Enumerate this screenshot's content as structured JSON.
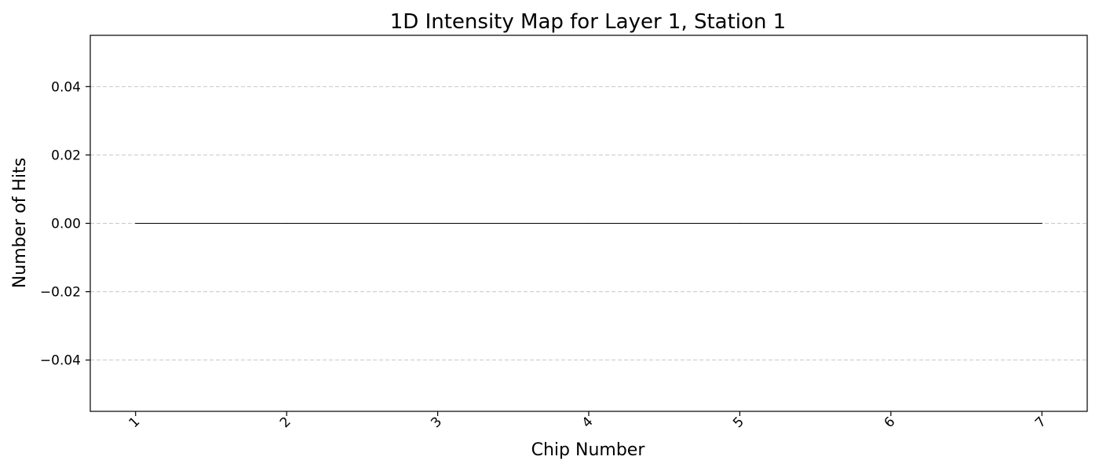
{
  "chart_data": {
    "type": "bar",
    "title": "1D Intensity Map for Layer 1, Station 1",
    "xlabel": "Chip Number",
    "ylabel": "Number of Hits",
    "categories": [
      "1",
      "2",
      "3",
      "4",
      "5",
      "6",
      "7"
    ],
    "x": [
      1,
      2,
      3,
      4,
      5,
      6,
      7
    ],
    "values": [
      0,
      0,
      0,
      0,
      0,
      0,
      0
    ],
    "xlim": [
      0.7,
      7.3
    ],
    "ylim": [
      -0.055,
      0.055
    ],
    "yticks": [
      -0.04,
      -0.02,
      0.0,
      0.02,
      0.04
    ],
    "ytick_labels": [
      "−0.04",
      "−0.02",
      "0.00",
      "0.02",
      "0.04"
    ],
    "xtick_rotation": 45,
    "grid": "y-dashed",
    "colors": {
      "grid": "#c8c8c8",
      "axis": "#000000",
      "series": "#000000"
    }
  }
}
